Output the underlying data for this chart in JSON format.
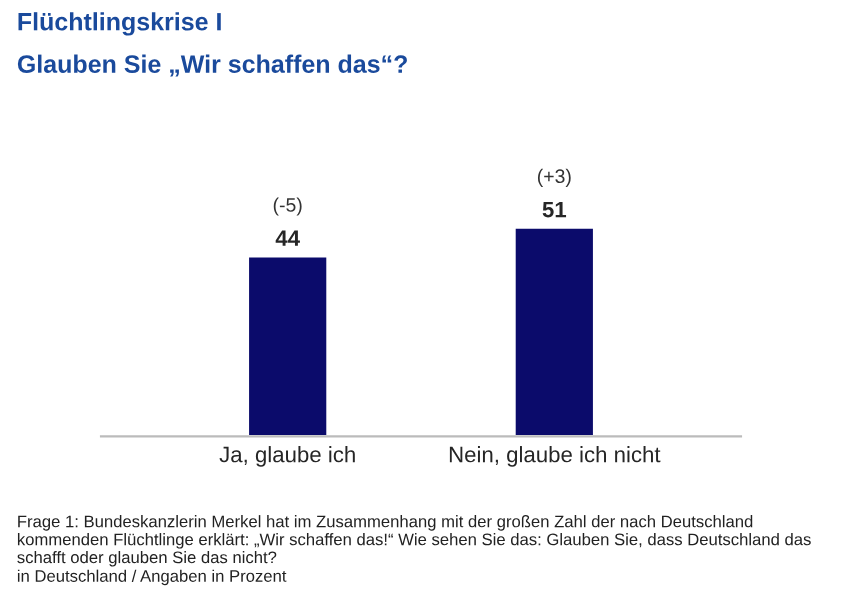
{
  "chart_data": {
    "type": "bar",
    "title": "Flüchtlingskrise I",
    "subtitle": "Glauben Sie „Wir schaffen das“?",
    "categories": [
      "Ja, glaube ich",
      "Nein, glaube ich nicht"
    ],
    "values": [
      44,
      51
    ],
    "color": "#0b0b6b",
    "data_labels": true,
    "annotations": [
      {
        "text": "(-5)",
        "x": "Ja, glaube ich",
        "y": 44
      },
      {
        "text": "(+3)",
        "x": "Nein, glaube ich nicht",
        "y": 51
      },
      "Frage 1: Bundeskanzlerin Merkel hat im Zusammenhang mit der großen Zahl der nach Deutschland kommenden Flüchtlinge erklärt: „Wir schaffen das!“ Wie sehen Sie das: Glauben Sie, dass Deutschland das schafft oder glauben Sie das nicht?",
      "in Deutschland / Angaben in Prozent"
    ]
  }
}
